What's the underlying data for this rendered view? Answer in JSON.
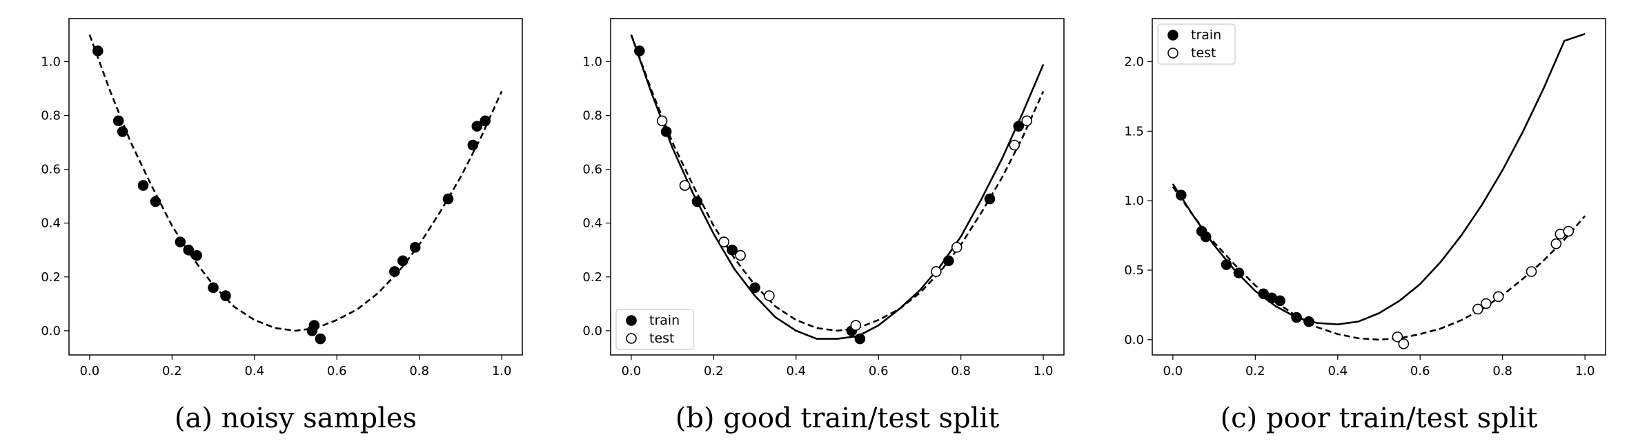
{
  "chart_data": [
    {
      "type": "scatter",
      "caption": "(a) noisy samples",
      "xlim": [
        -0.05,
        1.05
      ],
      "ylim": [
        -0.09,
        1.16
      ],
      "xticks": [
        "0.0",
        "0.2",
        "0.4",
        "0.6",
        "0.8",
        "1.0"
      ],
      "yticks": [
        "0.0",
        "0.2",
        "0.4",
        "0.6",
        "0.8",
        "1.0"
      ],
      "legend": null,
      "series": [
        {
          "kind": "points",
          "marker": "filled",
          "x": [
            0.02,
            0.07,
            0.08,
            0.13,
            0.16,
            0.22,
            0.24,
            0.26,
            0.3,
            0.33,
            0.54,
            0.545,
            0.56,
            0.74,
            0.76,
            0.79,
            0.87,
            0.93,
            0.94,
            0.96
          ],
          "y": [
            1.04,
            0.78,
            0.74,
            0.54,
            0.48,
            0.33,
            0.3,
            0.28,
            0.16,
            0.13,
            0.0,
            0.02,
            -0.03,
            0.22,
            0.26,
            0.31,
            0.49,
            0.69,
            0.76,
            0.78
          ]
        },
        {
          "kind": "curve",
          "style": "dashed",
          "x": [
            0,
            0.05,
            0.1,
            0.15,
            0.2,
            0.25,
            0.3,
            0.35,
            0.4,
            0.45,
            0.5,
            0.55,
            0.6,
            0.65,
            0.7,
            0.75,
            0.8,
            0.85,
            0.9,
            0.95,
            1.0
          ],
          "y": [
            1.1,
            0.89,
            0.7,
            0.54,
            0.39,
            0.27,
            0.17,
            0.09,
            0.04,
            0.01,
            0.0,
            0.01,
            0.04,
            0.08,
            0.14,
            0.22,
            0.32,
            0.44,
            0.57,
            0.72,
            0.89
          ]
        }
      ]
    },
    {
      "type": "scatter",
      "caption": "(b) good train/test split",
      "xlim": [
        -0.05,
        1.05
      ],
      "ylim": [
        -0.09,
        1.16
      ],
      "xticks": [
        "0.0",
        "0.2",
        "0.4",
        "0.6",
        "0.8",
        "1.0"
      ],
      "yticks": [
        "0.0",
        "0.2",
        "0.4",
        "0.6",
        "0.8",
        "1.0"
      ],
      "legend": {
        "position": "lower-left",
        "entries": [
          {
            "label": "train",
            "marker": "filled"
          },
          {
            "label": "test",
            "marker": "open"
          }
        ]
      },
      "series": [
        {
          "kind": "points",
          "name": "train",
          "marker": "filled",
          "x": [
            0.02,
            0.085,
            0.16,
            0.245,
            0.3,
            0.535,
            0.555,
            0.77,
            0.87,
            0.94
          ],
          "y": [
            1.04,
            0.74,
            0.48,
            0.3,
            0.16,
            0.0,
            -0.03,
            0.26,
            0.49,
            0.76
          ]
        },
        {
          "kind": "points",
          "name": "test",
          "marker": "open",
          "x": [
            0.075,
            0.13,
            0.225,
            0.265,
            0.335,
            0.545,
            0.74,
            0.79,
            0.93,
            0.96
          ],
          "y": [
            0.78,
            0.54,
            0.33,
            0.28,
            0.13,
            0.02,
            0.22,
            0.31,
            0.69,
            0.78
          ]
        },
        {
          "kind": "curve",
          "style": "dashed",
          "x": [
            0,
            0.05,
            0.1,
            0.15,
            0.2,
            0.25,
            0.3,
            0.35,
            0.4,
            0.45,
            0.5,
            0.55,
            0.6,
            0.65,
            0.7,
            0.75,
            0.8,
            0.85,
            0.9,
            0.95,
            1.0
          ],
          "y": [
            1.1,
            0.89,
            0.7,
            0.54,
            0.39,
            0.27,
            0.17,
            0.09,
            0.04,
            0.01,
            0.0,
            0.01,
            0.04,
            0.08,
            0.14,
            0.22,
            0.32,
            0.44,
            0.57,
            0.72,
            0.89
          ]
        },
        {
          "kind": "curve",
          "style": "solid",
          "x": [
            0,
            0.05,
            0.1,
            0.15,
            0.2,
            0.25,
            0.3,
            0.35,
            0.4,
            0.45,
            0.5,
            0.55,
            0.6,
            0.65,
            0.7,
            0.75,
            0.8,
            0.85,
            0.9,
            0.95,
            1.0
          ],
          "y": [
            1.1,
            0.88,
            0.68,
            0.51,
            0.36,
            0.23,
            0.13,
            0.05,
            0.0,
            -0.03,
            -0.03,
            -0.02,
            0.02,
            0.08,
            0.15,
            0.24,
            0.35,
            0.49,
            0.64,
            0.81,
            0.99
          ]
        }
      ]
    },
    {
      "type": "scatter",
      "caption": "(c) poor train/test split",
      "xlim": [
        -0.05,
        1.05
      ],
      "ylim": [
        -0.11,
        2.31
      ],
      "xticks": [
        "0.0",
        "0.2",
        "0.4",
        "0.6",
        "0.8",
        "1.0"
      ],
      "yticks": [
        "0.0",
        "0.5",
        "1.0",
        "1.5",
        "2.0"
      ],
      "legend": {
        "position": "top-left",
        "entries": [
          {
            "label": "train",
            "marker": "filled"
          },
          {
            "label": "test",
            "marker": "open"
          }
        ]
      },
      "series": [
        {
          "kind": "points",
          "name": "train",
          "marker": "filled",
          "x": [
            0.02,
            0.07,
            0.08,
            0.13,
            0.16,
            0.22,
            0.24,
            0.26,
            0.3,
            0.33
          ],
          "y": [
            1.04,
            0.78,
            0.74,
            0.54,
            0.48,
            0.33,
            0.3,
            0.28,
            0.16,
            0.13
          ]
        },
        {
          "kind": "points",
          "name": "test",
          "marker": "open",
          "x": [
            0.545,
            0.56,
            0.74,
            0.76,
            0.79,
            0.87,
            0.93,
            0.94,
            0.96
          ],
          "y": [
            0.02,
            -0.03,
            0.22,
            0.26,
            0.31,
            0.49,
            0.69,
            0.76,
            0.78
          ]
        },
        {
          "kind": "curve",
          "style": "dashed",
          "x": [
            0,
            0.05,
            0.1,
            0.15,
            0.2,
            0.25,
            0.3,
            0.35,
            0.4,
            0.45,
            0.5,
            0.55,
            0.6,
            0.65,
            0.7,
            0.75,
            0.8,
            0.85,
            0.9,
            0.95,
            1.0
          ],
          "y": [
            1.1,
            0.89,
            0.7,
            0.54,
            0.39,
            0.27,
            0.17,
            0.09,
            0.04,
            0.01,
            0.0,
            0.01,
            0.04,
            0.08,
            0.14,
            0.22,
            0.32,
            0.44,
            0.57,
            0.72,
            0.89
          ]
        },
        {
          "kind": "curve",
          "style": "solid",
          "x": [
            0,
            0.05,
            0.1,
            0.15,
            0.2,
            0.25,
            0.3,
            0.35,
            0.4,
            0.45,
            0.5,
            0.55,
            0.6,
            0.65,
            0.7,
            0.75,
            0.8,
            0.85,
            0.9,
            0.95,
            1.0
          ],
          "y": [
            1.12,
            0.89,
            0.68,
            0.5,
            0.35,
            0.24,
            0.16,
            0.12,
            0.11,
            0.13,
            0.19,
            0.28,
            0.4,
            0.56,
            0.75,
            0.97,
            1.22,
            1.5,
            1.81,
            2.15,
            2.2
          ]
        }
      ]
    }
  ]
}
